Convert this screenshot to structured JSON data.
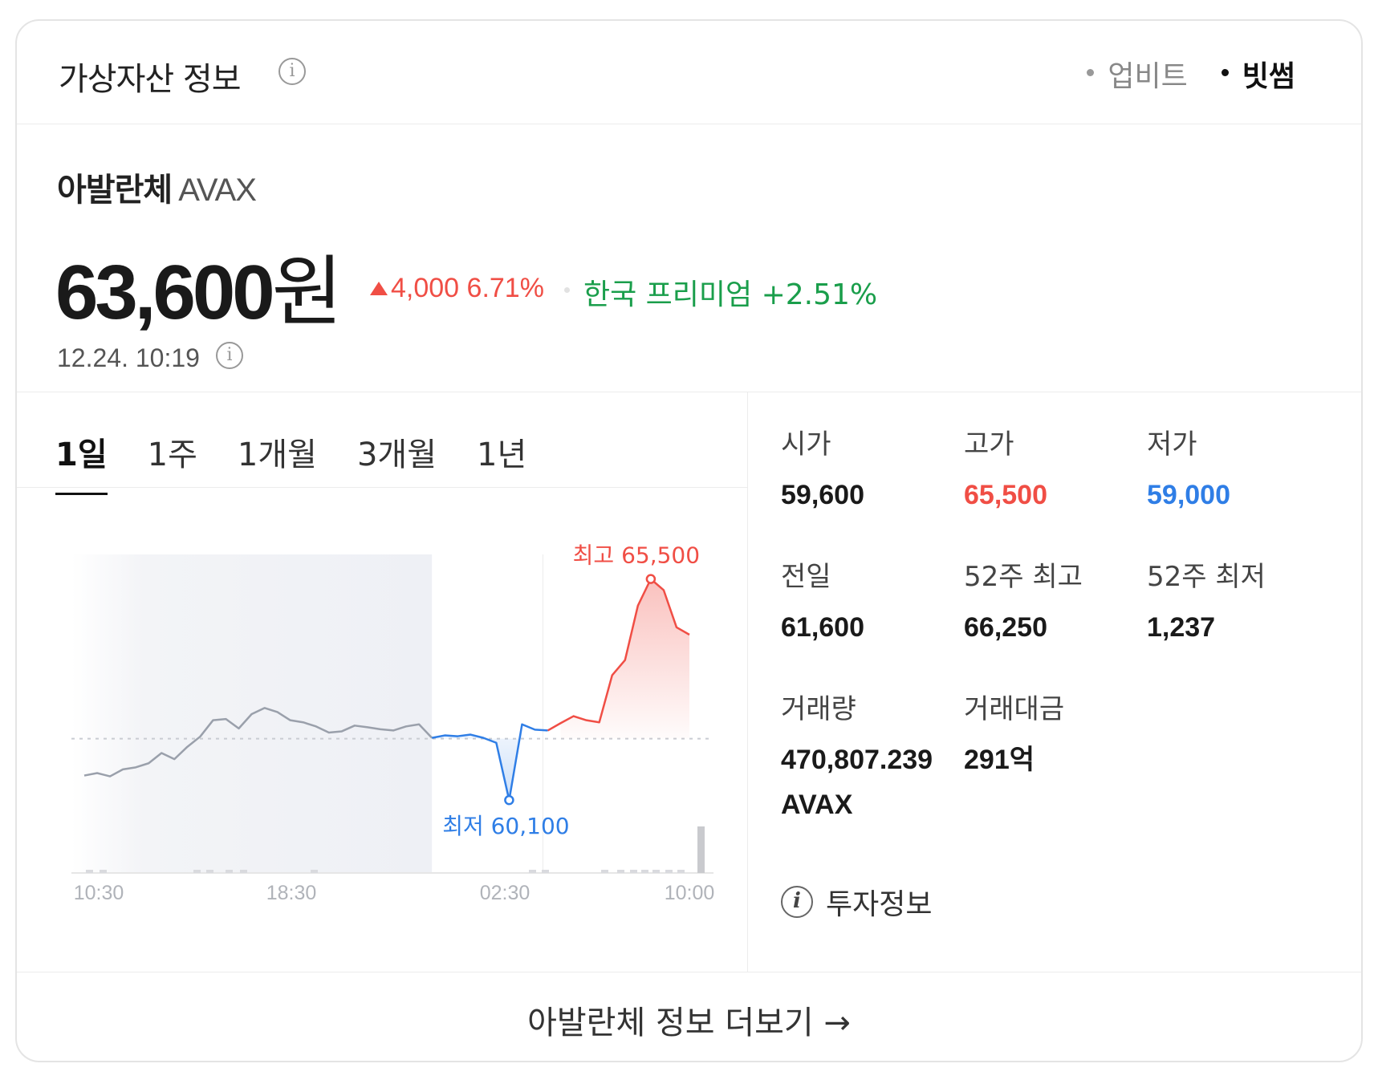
{
  "header": {
    "title": "가상자산 정보",
    "info_icon": "info-icon",
    "exchanges": [
      {
        "label": "업비트",
        "active": false
      },
      {
        "label": "빗썸",
        "active": true
      }
    ]
  },
  "coin": {
    "name": "아발란체",
    "symbol": "AVAX",
    "price": "63,600",
    "price_unit": "원",
    "change": "4,000 6.71%",
    "premium": "한국 프리미엄 +2.51%",
    "timestamp": "12.24. 10:19"
  },
  "periods": [
    "1일",
    "1주",
    "1개월",
    "3개월",
    "1년"
  ],
  "chart_data": {
    "type": "line",
    "x_ticks": [
      "10:30",
      "18:30",
      "02:30",
      "10:00"
    ],
    "reference_value": 61600,
    "high_label": "최고 65,500",
    "low_label": "최저 60,100",
    "high": 65500,
    "low": 60100,
    "values": [
      60700,
      60760,
      60680,
      60850,
      60900,
      61000,
      61250,
      61100,
      61400,
      61650,
      62050,
      62080,
      61850,
      62200,
      62350,
      62250,
      62050,
      62000,
      61900,
      61750,
      61780,
      61920,
      61880,
      61830,
      61800,
      61900,
      61950,
      61620,
      61680,
      61660,
      61700,
      61620,
      61500,
      60100,
      61950,
      61820,
      61800,
      61980,
      62150,
      62050,
      62000,
      63150,
      63520,
      64850,
      65500,
      65230,
      64320,
      64140
    ],
    "colors": {
      "before": "#9aa0ab",
      "low": "#2f7ee6",
      "high": "#f04e45"
    }
  },
  "stats": [
    {
      "label": "시가",
      "value": "59,600",
      "color": ""
    },
    {
      "label": "고가",
      "value": "65,500",
      "color": "red"
    },
    {
      "label": "저가",
      "value": "59,000",
      "color": "blue"
    },
    {
      "label": "전일",
      "value": "61,600",
      "color": ""
    },
    {
      "label": "52주 최고",
      "value": "66,250",
      "color": ""
    },
    {
      "label": "52주 최저",
      "value": "1,237",
      "color": ""
    },
    {
      "label": "거래량",
      "value": "470,807.239 AVAX",
      "color": ""
    },
    {
      "label": "거래대금",
      "value": "291억",
      "color": ""
    }
  ],
  "invest_info": "투자정보",
  "footer": {
    "more_label": "아발란체 정보 더보기 →"
  }
}
